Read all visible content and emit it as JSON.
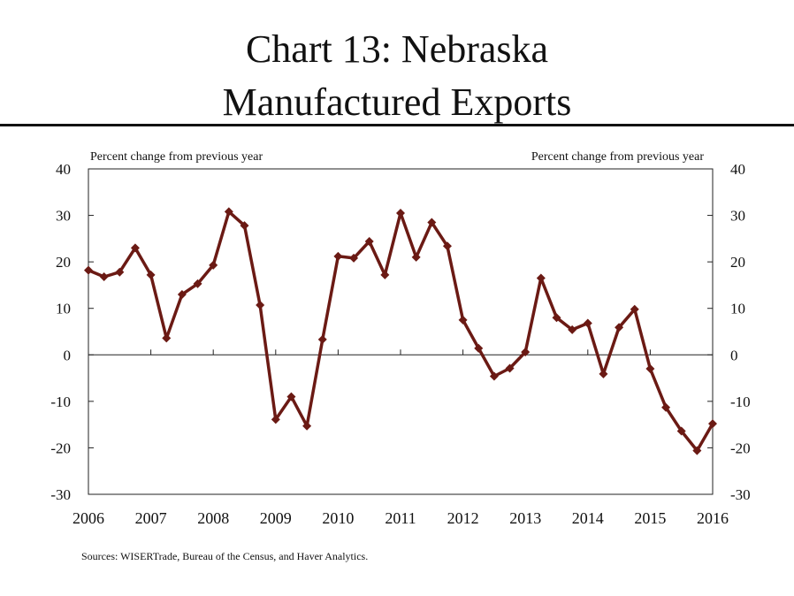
{
  "title_line1": "Chart 13: Nebraska",
  "title_line2": "Manufactured Exports",
  "source": "Sources: WISERTrade, Bureau of the Census, and Haver Analytics.",
  "colors": {
    "series": "#6b1a14",
    "axis": "#222222",
    "title": "#111111"
  },
  "chart_data": {
    "type": "line",
    "ylabel_left": "Percent change from previous year",
    "ylabel_right": "Percent change from previous year",
    "ylim": [
      -30,
      40
    ],
    "yticks": [
      40,
      30,
      20,
      10,
      0,
      -10,
      -20,
      -30
    ],
    "xlim": [
      2006,
      2016
    ],
    "xticks": [
      "2006",
      "2007",
      "2008",
      "2009",
      "2010",
      "2011",
      "2012",
      "2013",
      "2014",
      "2015",
      "2016"
    ],
    "grid": false,
    "series": [
      {
        "x": [
          2006.0,
          2006.25,
          2006.5,
          2006.75,
          2007.0,
          2007.25,
          2007.5,
          2007.75,
          2008.0,
          2008.25,
          2008.5,
          2008.75,
          2009.0,
          2009.25,
          2009.5,
          2009.75,
          2010.0,
          2010.25,
          2010.5,
          2010.75,
          2011.0,
          2011.25,
          2011.5,
          2011.75,
          2012.0,
          2012.25,
          2012.5,
          2012.75,
          2013.0,
          2013.25,
          2013.5,
          2013.75,
          2014.0,
          2014.25,
          2014.5,
          2014.75,
          2015.0,
          2015.25,
          2015.5,
          2015.75,
          2016.0
        ],
        "values": [
          18.2,
          16.8,
          17.8,
          23.0,
          17.2,
          3.6,
          13.0,
          15.3,
          19.3,
          30.8,
          27.8,
          10.7,
          -13.9,
          -9.0,
          -15.3,
          3.3,
          21.2,
          20.8,
          24.4,
          17.2,
          30.5,
          21.0,
          28.5,
          23.4,
          7.5,
          1.4,
          -4.6,
          -2.9,
          0.6,
          16.5,
          8.0,
          5.4,
          6.8,
          -4.1,
          5.9,
          9.8,
          -3.0,
          -11.3,
          -16.4,
          -20.6,
          -14.8
        ]
      }
    ]
  }
}
